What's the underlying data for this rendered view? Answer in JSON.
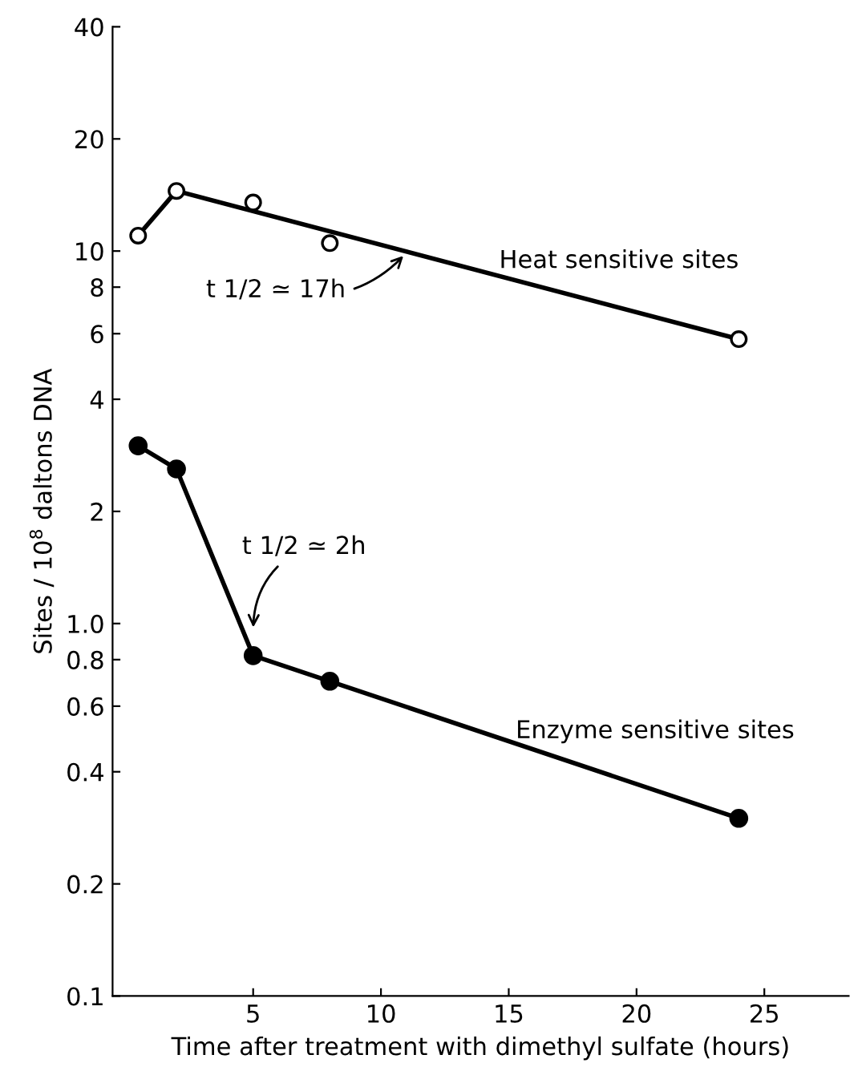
{
  "chart_data": {
    "type": "line",
    "xlabel": "Time after treatment with dimethyl sulfate (hours)",
    "ylabel": "Sites / 10$^{8}$ daltons DNA",
    "log": "y",
    "grid": false,
    "legend": false,
    "xlim": [
      -0.5,
      28.3
    ],
    "xticks": [
      5,
      10,
      15,
      20,
      25
    ],
    "ylim": [
      0.1,
      40
    ],
    "yticks": [
      0.1,
      0.2,
      0.4,
      0.6,
      0.8,
      {
        "value": 1,
        "label": "1.0"
      },
      2,
      4,
      6,
      8,
      10,
      20,
      40
    ],
    "series": [
      {
        "type": "scatter",
        "marker": "circle",
        "color": "#ffffff",
        "x": [
          0.5,
          2,
          5,
          8,
          24
        ],
        "values": [
          11,
          14.5,
          13.5,
          10.5,
          5.8
        ]
      },
      {
        "name": "Heat sensitive sites",
        "type": "line",
        "marker": "none",
        "color": "#000000",
        "x": [
          0.5,
          2,
          24
        ],
        "values": [
          11,
          14.5,
          5.8
        ]
      },
      {
        "name": "Enzyme sensitive sites",
        "marker": "circle",
        "color": "#000000",
        "x": [
          0.5,
          2,
          5,
          8,
          24
        ],
        "values": [
          3.0,
          2.6,
          0.82,
          0.7,
          0.3
        ]
      }
    ],
    "annotations": [
      {
        "text": "t 1/2 ≃ 17h",
        "x": 11,
        "y": 9.9
      },
      {
        "text": "t 1/2 ≃ 2h",
        "x": 5,
        "y": 0.95
      }
    ]
  }
}
